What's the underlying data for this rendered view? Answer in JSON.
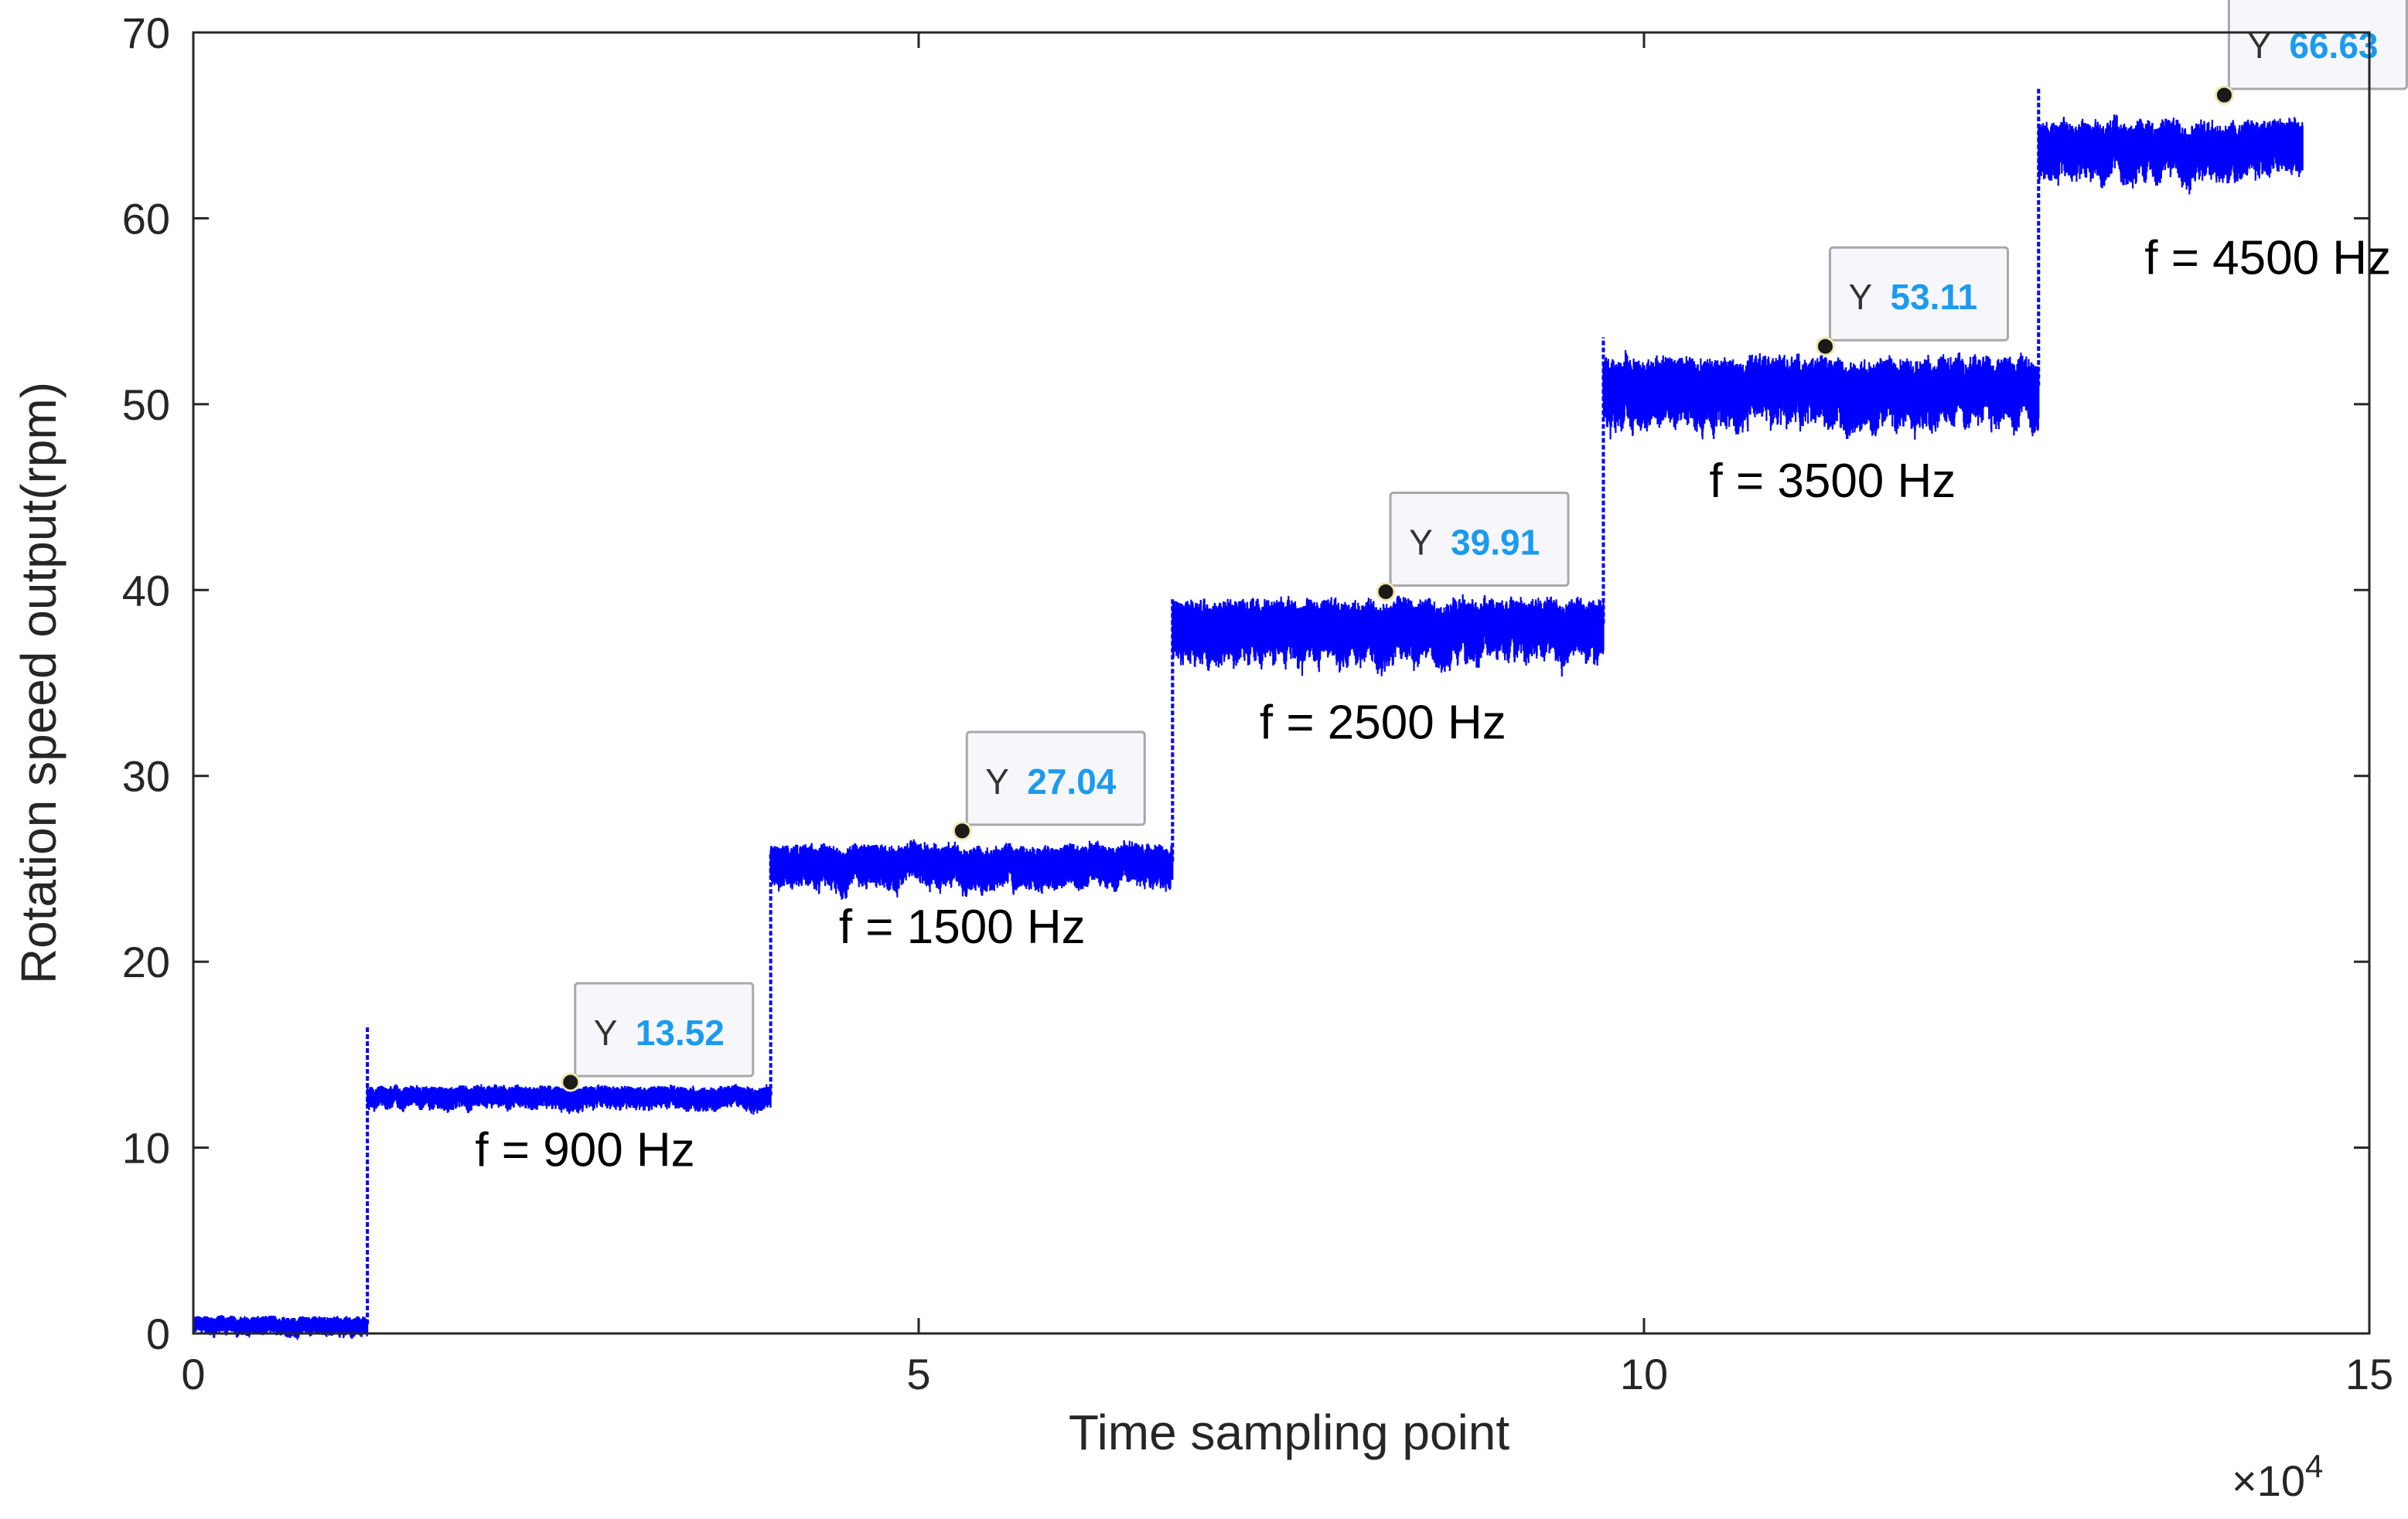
{
  "chart_data": {
    "type": "line",
    "title": "",
    "xlabel": "Time sampling point",
    "ylabel": "Rotation speed output(rpm)",
    "x_exponent_label": "×10",
    "x_exponent_power": "4",
    "xlim": [
      0,
      15
    ],
    "ylim": [
      0,
      70
    ],
    "xticks": [
      0,
      5,
      10,
      15
    ],
    "yticks": [
      0,
      10,
      20,
      30,
      40,
      50,
      60,
      70
    ],
    "xtick_labels": [
      "0",
      "5",
      "10",
      "15"
    ],
    "ytick_labels": [
      "0",
      "10",
      "20",
      "30",
      "40",
      "50",
      "60",
      "70"
    ],
    "line_color": "#0000ff",
    "grid": false,
    "series": [
      {
        "name": "Rotation speed",
        "segments": [
          {
            "x_start": 0.0,
            "x_end": 1.2,
            "mean": 0.5,
            "noise": 0.5
          },
          {
            "x_start": 1.2,
            "x_end": 3.98,
            "mean": 12.8,
            "noise": 0.6
          },
          {
            "x_start": 3.98,
            "x_end": 6.75,
            "mean": 25.4,
            "noise": 1.1
          },
          {
            "x_start": 6.75,
            "x_end": 9.72,
            "mean": 38.2,
            "noise": 1.6
          },
          {
            "x_start": 9.72,
            "x_end": 12.72,
            "mean": 51.0,
            "noise": 1.8
          },
          {
            "x_start": 12.72,
            "x_end": 14.54,
            "mean": 64.0,
            "noise": 1.5
          }
        ],
        "spikes": [
          {
            "x": 1.2,
            "from": 0.5,
            "to": 16.6
          },
          {
            "x": 3.98,
            "from": 12.8,
            "to": 25.8
          },
          {
            "x": 6.75,
            "from": 25.4,
            "to": 39.5
          },
          {
            "x": 9.72,
            "from": 38.2,
            "to": 53.6
          },
          {
            "x": 12.72,
            "from": 51.0,
            "to": 67.0
          }
        ]
      }
    ],
    "annotations": [
      {
        "text": "f = 900 Hz",
        "x": 2.7,
        "y": 9.0
      },
      {
        "text": "f = 1500 Hz",
        "x": 5.3,
        "y": 21.0
      },
      {
        "text": "f = 2500 Hz",
        "x": 8.2,
        "y": 32.0
      },
      {
        "text": "f = 3500 Hz",
        "x": 11.3,
        "y": 45.0
      },
      {
        "text": "f = 4500 Hz",
        "x": 14.3,
        "y": 57.0
      }
    ],
    "datatips": [
      {
        "label": "Y",
        "value": "13.52",
        "x": 2.6,
        "y": 13.52
      },
      {
        "label": "Y",
        "value": "27.04",
        "x": 5.3,
        "y": 27.04
      },
      {
        "label": "Y",
        "value": "39.91",
        "x": 8.22,
        "y": 39.91
      },
      {
        "label": "Y",
        "value": "53.11",
        "x": 11.25,
        "y": 53.11
      },
      {
        "label": "Y",
        "value": "66.63",
        "x": 14.0,
        "y": 66.63
      }
    ],
    "datatip_value_color": "#1a9bf0"
  }
}
